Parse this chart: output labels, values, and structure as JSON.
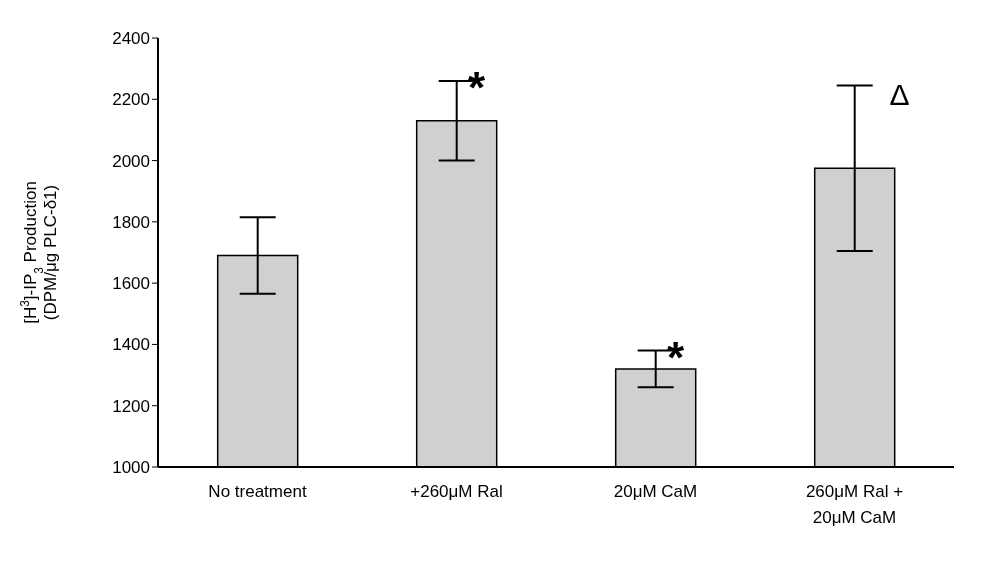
{
  "chart_data": {
    "type": "bar",
    "ylabel": "[H$^{3}$]-IP$_{3}$ Production\n(DPM/μg PLC-δ1)",
    "categories": [
      "No treatment",
      "+260μM Ral",
      "20μM CaM",
      "260μM Ral + 20μM CaM"
    ],
    "values": [
      1690,
      2130,
      1320,
      1975
    ],
    "errors": [
      125,
      130,
      60,
      270
    ],
    "color": "#d0d0d0",
    "ylim": [
      1000,
      2400
    ],
    "yticks": [
      1000,
      1200,
      1400,
      1600,
      1800,
      2000,
      2200,
      2400
    ],
    "grid": false,
    "annotations": [
      {
        "text": "*",
        "x": "+260μM Ral",
        "y": 2260
      },
      {
        "text": "*",
        "x": "20μM CaM",
        "y": 1380
      },
      {
        "text": "Δ",
        "x": "260μM Ral + 20μM CaM",
        "y": 2245
      }
    ]
  }
}
